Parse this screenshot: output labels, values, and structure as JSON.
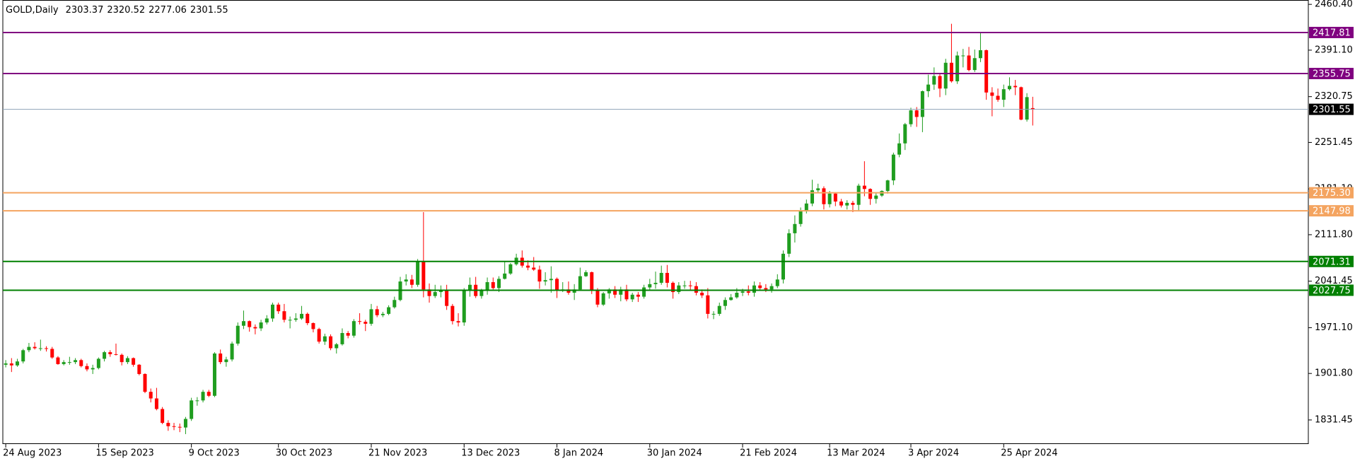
{
  "chart_data": {
    "type": "candlestick",
    "title": "GOLD,Daily",
    "up_color": "#1f9d1f",
    "down_color": "#ff0000",
    "price_line_color": "#8ea3b7",
    "ylim": [
      1795,
      2467
    ],
    "xlim": [
      -0.5,
      224.5
    ],
    "yticks": [
      {
        "value": 2460.4,
        "label": "2460.40"
      },
      {
        "value": 2391.1,
        "label": "2391.10"
      },
      2320.75,
      2251.45,
      {
        "value": 2181.1,
        "label": "2181.10"
      },
      {
        "value": 2111.8,
        "label": "2111.80"
      },
      2041.45,
      {
        "value": 1971.1,
        "label": "1971.10"
      },
      {
        "value": 1901.8,
        "label": "1901.80"
      },
      1831.45
    ],
    "xticks": [
      {
        "value": 0,
        "label": "24 Aug 2023"
      },
      {
        "value": 16,
        "label": "15 Sep 2023"
      },
      {
        "value": 32,
        "label": "9 Oct 2023"
      },
      {
        "value": 47,
        "label": "30 Oct 2023"
      },
      {
        "value": 63,
        "label": "21 Nov 2023"
      },
      {
        "value": 79,
        "label": "13 Dec 2023"
      },
      {
        "value": 95,
        "label": "8 Jan 2024"
      },
      {
        "value": 111,
        "label": "30 Jan 2024"
      },
      {
        "value": 127,
        "label": "21 Feb 2024"
      },
      {
        "value": 142,
        "label": "13 Mar 2024"
      },
      {
        "value": 156,
        "label": "3 Apr 2024"
      },
      {
        "value": 172,
        "label": "25 Apr 2024"
      }
    ],
    "levels": [
      {
        "value": 2417.81,
        "color": "#800080"
      },
      {
        "value": 2355.75,
        "color": "#800080"
      },
      {
        "value": 2175.3,
        "label": "2175.30",
        "color": "#f4a460"
      },
      {
        "value": 2147.98,
        "color": "#f4a460"
      },
      {
        "value": 2071.31,
        "color": "#008000"
      },
      {
        "value": 2027.75,
        "color": "#008000"
      }
    ],
    "candles": [
      [
        1915,
        1922,
        1911,
        1917
      ],
      [
        1917,
        1925,
        1904,
        1914
      ],
      [
        1914,
        1924,
        1912,
        1920
      ],
      [
        1920,
        1939,
        1917,
        1937
      ],
      [
        1937,
        1948,
        1934,
        1942
      ],
      [
        1942,
        1949,
        1938,
        1940
      ],
      [
        1940,
        1953,
        1936,
        1940
      ],
      [
        1940,
        1943,
        1935,
        1939
      ],
      [
        1939,
        1942,
        1924,
        1926
      ],
      [
        1926,
        1928,
        1915,
        1916
      ],
      [
        1916,
        1922,
        1914,
        1919
      ],
      [
        1919,
        1927,
        1915,
        1919
      ],
      [
        1919,
        1925,
        1916,
        1922
      ],
      [
        1922,
        1924,
        1911,
        1913
      ],
      [
        1913,
        1917,
        1905,
        1908
      ],
      [
        1908,
        1915,
        1901,
        1910
      ],
      [
        1910,
        1926,
        1908,
        1924
      ],
      [
        1924,
        1936,
        1920,
        1934
      ],
      [
        1934,
        1937,
        1927,
        1931
      ],
      [
        1931,
        1947,
        1929,
        1930
      ],
      [
        1930,
        1932,
        1914,
        1919
      ],
      [
        1919,
        1928,
        1916,
        1925
      ],
      [
        1925,
        1926,
        1912,
        1915
      ],
      [
        1915,
        1916,
        1899,
        1901
      ],
      [
        1901,
        1902,
        1872,
        1874
      ],
      [
        1874,
        1879,
        1858,
        1864
      ],
      [
        1864,
        1880,
        1846,
        1848
      ],
      [
        1848,
        1851,
        1825,
        1827
      ],
      [
        1827,
        1831,
        1815,
        1822
      ],
      [
        1822,
        1827,
        1816,
        1821
      ],
      [
        1821,
        1826,
        1813,
        1820
      ],
      [
        1820,
        1836,
        1810,
        1833
      ],
      [
        1833,
        1865,
        1830,
        1861
      ],
      [
        1861,
        1866,
        1853,
        1861
      ],
      [
        1861,
        1877,
        1858,
        1874
      ],
      [
        1874,
        1877,
        1866,
        1868
      ],
      [
        1868,
        1934,
        1866,
        1932
      ],
      [
        1932,
        1938,
        1916,
        1919
      ],
      [
        1919,
        1927,
        1912,
        1923
      ],
      [
        1923,
        1950,
        1920,
        1947
      ],
      [
        1947,
        1979,
        1944,
        1974
      ],
      [
        1974,
        1997,
        1969,
        1981
      ],
      [
        1981,
        1982,
        1965,
        1972
      ],
      [
        1972,
        1976,
        1961,
        1970
      ],
      [
        1970,
        1983,
        1966,
        1979
      ],
      [
        1979,
        1990,
        1976,
        1985
      ],
      [
        1985,
        2009,
        1980,
        2006
      ],
      [
        2006,
        2009,
        1992,
        1996
      ],
      [
        1996,
        2007,
        1979,
        1983
      ],
      [
        1983,
        1988,
        1970,
        1983
      ],
      [
        1983,
        1993,
        1980,
        1985
      ],
      [
        1985,
        2004,
        1983,
        1992
      ],
      [
        1992,
        1994,
        1975,
        1978
      ],
      [
        1978,
        1979,
        1964,
        1969
      ],
      [
        1969,
        1971,
        1947,
        1950
      ],
      [
        1950,
        1962,
        1945,
        1958
      ],
      [
        1958,
        1961,
        1937,
        1940
      ],
      [
        1940,
        1948,
        1932,
        1946
      ],
      [
        1946,
        1970,
        1944,
        1963
      ],
      [
        1963,
        1966,
        1955,
        1959
      ],
      [
        1959,
        1984,
        1956,
        1981
      ],
      [
        1981,
        1993,
        1976,
        1980
      ],
      [
        1980,
        1983,
        1966,
        1977
      ],
      [
        1977,
        2007,
        1974,
        1999
      ],
      [
        1999,
        2004,
        1987,
        1990
      ],
      [
        1990,
        1995,
        1987,
        1992
      ],
      [
        1992,
        2005,
        1990,
        2002
      ],
      [
        2002,
        2018,
        2000,
        2013
      ],
      [
        2013,
        2048,
        2011,
        2041
      ],
      [
        2041,
        2052,
        2035,
        2044
      ],
      [
        2044,
        2051,
        2031,
        2036
      ],
      [
        2036,
        2075,
        2033,
        2072
      ],
      [
        2072,
        2146,
        2017,
        2029
      ],
      [
        2029,
        2038,
        2009,
        2019
      ],
      [
        2019,
        2036,
        2016,
        2025
      ],
      [
        2025,
        2035,
        2017,
        2028
      ],
      [
        2028,
        2036,
        1998,
        2004
      ],
      [
        2004,
        2007,
        1976,
        1981
      ],
      [
        1981,
        1993,
        1973,
        1979
      ],
      [
        1979,
        2031,
        1974,
        2027
      ],
      [
        2027,
        2047,
        2018,
        2036
      ],
      [
        2036,
        2048,
        2016,
        2019
      ],
      [
        2019,
        2030,
        2015,
        2027
      ],
      [
        2027,
        2047,
        2021,
        2040
      ],
      [
        2040,
        2047,
        2029,
        2031
      ],
      [
        2031,
        2049,
        2025,
        2045
      ],
      [
        2045,
        2071,
        2044,
        2053
      ],
      [
        2053,
        2069,
        2051,
        2067
      ],
      [
        2067,
        2083,
        2065,
        2077
      ],
      [
        2077,
        2088,
        2062,
        2065
      ],
      [
        2065,
        2073,
        2058,
        2062
      ],
      [
        2062,
        2078,
        2057,
        2059
      ],
      [
        2059,
        2065,
        2030,
        2041
      ],
      [
        2041,
        2055,
        2035,
        2043
      ],
      [
        2043,
        2064,
        2024,
        2045
      ],
      [
        2045,
        2047,
        2016,
        2027
      ],
      [
        2027,
        2040,
        2025,
        2029
      ],
      [
        2029,
        2041,
        2021,
        2024
      ],
      [
        2024,
        2037,
        2013,
        2029
      ],
      [
        2029,
        2062,
        2027,
        2049
      ],
      [
        2049,
        2058,
        2048,
        2055
      ],
      [
        2055,
        2056,
        2022,
        2028
      ],
      [
        2028,
        2031,
        2002,
        2006
      ],
      [
        2006,
        2025,
        2004,
        2023
      ],
      [
        2023,
        2031,
        2015,
        2029
      ],
      [
        2029,
        2034,
        2016,
        2021
      ],
      [
        2021,
        2033,
        2011,
        2029
      ],
      [
        2029,
        2036,
        2011,
        2014
      ],
      [
        2014,
        2024,
        2010,
        2021
      ],
      [
        2021,
        2025,
        2010,
        2018
      ],
      [
        2018,
        2036,
        2015,
        2032
      ],
      [
        2032,
        2045,
        2027,
        2037
      ],
      [
        2037,
        2056,
        2030,
        2039
      ],
      [
        2039,
        2065,
        2036,
        2054
      ],
      [
        2054,
        2066,
        2032,
        2039
      ],
      [
        2039,
        2041,
        2015,
        2025
      ],
      [
        2025,
        2040,
        2022,
        2035
      ],
      [
        2035,
        2042,
        2030,
        2035
      ],
      [
        2035,
        2042,
        2027,
        2034
      ],
      [
        2034,
        2040,
        2020,
        2024
      ],
      [
        2024,
        2029,
        2016,
        2020
      ],
      [
        2020,
        2031,
        1985,
        1992
      ],
      [
        1992,
        1996,
        1984,
        1992
      ],
      [
        1992,
        2009,
        1989,
        2004
      ],
      [
        2004,
        2017,
        1998,
        2013
      ],
      [
        2013,
        2022,
        2012,
        2017
      ],
      [
        2017,
        2031,
        2015,
        2024
      ],
      [
        2024,
        2030,
        2019,
        2026
      ],
      [
        2026,
        2035,
        2020,
        2024
      ],
      [
        2024,
        2041,
        2018,
        2035
      ],
      [
        2035,
        2040,
        2027,
        2031
      ],
      [
        2031,
        2037,
        2025,
        2029
      ],
      [
        2029,
        2038,
        2024,
        2034
      ],
      [
        2034,
        2052,
        2031,
        2044
      ],
      [
        2044,
        2088,
        2038,
        2083
      ],
      [
        2083,
        2120,
        2078,
        2114
      ],
      [
        2114,
        2141,
        2100,
        2128
      ],
      [
        2128,
        2153,
        2124,
        2148
      ],
      [
        2148,
        2165,
        2144,
        2159
      ],
      [
        2159,
        2195,
        2155,
        2179
      ],
      [
        2179,
        2189,
        2175,
        2182
      ],
      [
        2182,
        2185,
        2150,
        2158
      ],
      [
        2158,
        2178,
        2153,
        2174
      ],
      [
        2174,
        2175,
        2155,
        2162
      ],
      [
        2162,
        2166,
        2153,
        2156
      ],
      [
        2156,
        2164,
        2150,
        2160
      ],
      [
        2160,
        2163,
        2146,
        2157
      ],
      [
        2157,
        2189,
        2147,
        2186
      ],
      [
        2186,
        2223,
        2170,
        2181
      ],
      [
        2181,
        2182,
        2157,
        2166
      ],
      [
        2166,
        2176,
        2159,
        2171
      ],
      [
        2171,
        2179,
        2169,
        2178
      ],
      [
        2178,
        2195,
        2174,
        2194
      ],
      [
        2194,
        2236,
        2187,
        2233
      ],
      [
        2233,
        2265,
        2229,
        2250
      ],
      [
        2250,
        2281,
        2240,
        2279
      ],
      [
        2279,
        2304,
        2275,
        2300
      ],
      [
        2300,
        2305,
        2275,
        2290
      ],
      [
        2290,
        2330,
        2267,
        2329
      ],
      [
        2329,
        2354,
        2320,
        2339
      ],
      [
        2339,
        2365,
        2331,
        2352
      ],
      [
        2352,
        2355,
        2320,
        2333
      ],
      [
        2333,
        2378,
        2323,
        2372
      ],
      [
        2372,
        2431,
        2342,
        2344
      ],
      [
        2344,
        2389,
        2340,
        2383
      ],
      [
        2383,
        2393,
        2365,
        2383
      ],
      [
        2383,
        2396,
        2359,
        2361
      ],
      [
        2361,
        2392,
        2358,
        2379
      ],
      [
        2379,
        2417,
        2373,
        2391
      ],
      [
        2391,
        2392,
        2316,
        2327
      ],
      [
        2327,
        2335,
        2291,
        2322
      ],
      [
        2322,
        2333,
        2313,
        2316
      ],
      [
        2316,
        2339,
        2305,
        2332
      ],
      [
        2332,
        2350,
        2330,
        2337
      ],
      [
        2337,
        2346,
        2323,
        2335
      ],
      [
        2335,
        2336,
        2285,
        2286
      ],
      [
        2286,
        2326,
        2283,
        2320
      ],
      [
        2303.37,
        2320.52,
        2277.06,
        2301.55
      ]
    ]
  }
}
